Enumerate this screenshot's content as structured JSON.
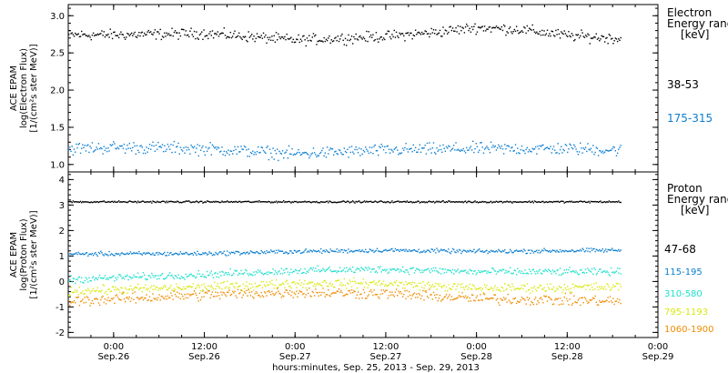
{
  "figure": {
    "xaxis_title": "hours:minutes, Sep. 25, 2013 - Sep. 29, 2013",
    "xticks": [
      {
        "time": "0:00",
        "date": "Sep.26",
        "t": 0
      },
      {
        "time": "12:00",
        "date": "Sep.26",
        "t": 12
      },
      {
        "time": "0:00",
        "date": "Sep.27",
        "t": 24
      },
      {
        "time": "12:00",
        "date": "Sep.27",
        "t": 36
      },
      {
        "time": "0:00",
        "date": "Sep.28",
        "t": 48
      },
      {
        "time": "12:00",
        "date": "Sep.28",
        "t": 60
      },
      {
        "time": "0:00",
        "date": "Sep.29",
        "t": 72
      }
    ]
  },
  "chart_data": [
    {
      "type": "scatter",
      "ylabel_lines": [
        "ACE EPAM",
        "log(Electron Flux)",
        "[1/(cm²s ster MeV)]"
      ],
      "yticks": [
        "1.0",
        "1.5",
        "2.0",
        "2.5",
        "3.0"
      ],
      "ylim": [
        0.9,
        3.15
      ],
      "xlim_hours": [
        -6,
        72
      ],
      "legend_title": [
        "Electron",
        "Energy range",
        "[keV]"
      ],
      "series": [
        {
          "name": "38-53",
          "color": "#000000",
          "t_start": -6,
          "t_end": 67,
          "mean": 2.73,
          "spread": 0.06,
          "trend": [
            [
              -6,
              2.75
            ],
            [
              0,
              2.75
            ],
            [
              12,
              2.77
            ],
            [
              24,
              2.68
            ],
            [
              36,
              2.73
            ],
            [
              42,
              2.78
            ],
            [
              48,
              2.85
            ],
            [
              54,
              2.82
            ],
            [
              60,
              2.74
            ],
            [
              67,
              2.7
            ]
          ]
        },
        {
          "name": "175-315",
          "color": "#0c7fd1",
          "t_start": -6,
          "t_end": 67,
          "mean": 1.2,
          "spread": 0.07,
          "trend": [
            [
              -6,
              1.22
            ],
            [
              0,
              1.24
            ],
            [
              12,
              1.22
            ],
            [
              24,
              1.15
            ],
            [
              36,
              1.2
            ],
            [
              48,
              1.22
            ],
            [
              60,
              1.22
            ],
            [
              67,
              1.2
            ]
          ]
        }
      ]
    },
    {
      "type": "scatter",
      "ylabel_lines": [
        "ACE EPAM",
        "log(Proton Flux)",
        "[1/(cm²s ster MeV)]"
      ],
      "yticks": [
        "-2",
        "-1",
        "0",
        "1",
        "2",
        "3",
        "4"
      ],
      "ylim": [
        -2.2,
        4.3
      ],
      "xlim_hours": [
        -6,
        72
      ],
      "legend_title": [
        "Proton",
        "Energy range",
        "[keV]"
      ],
      "series": [
        {
          "name": "47-68",
          "color": "#000000",
          "t_start": -6,
          "t_end": 67,
          "mean": 3.15,
          "spread": 0.03,
          "trend": [
            [
              -6,
              3.15
            ],
            [
              67,
              3.15
            ]
          ]
        },
        {
          "name": "115-195",
          "color": "#0c7fd1",
          "t_start": -6,
          "t_end": 67,
          "mean": 1.2,
          "spread": 0.07,
          "trend": [
            [
              -6,
              1.1
            ],
            [
              12,
              1.12
            ],
            [
              24,
              1.2
            ],
            [
              36,
              1.25
            ],
            [
              48,
              1.2
            ],
            [
              67,
              1.25
            ]
          ]
        },
        {
          "name": "310-580",
          "color": "#1fe0cc",
          "t_start": -6,
          "t_end": 67,
          "mean": 0.35,
          "spread": 0.12,
          "trend": [
            [
              -6,
              0.1
            ],
            [
              12,
              0.3
            ],
            [
              24,
              0.45
            ],
            [
              36,
              0.5
            ],
            [
              48,
              0.4
            ],
            [
              67,
              0.4
            ]
          ]
        },
        {
          "name": "795-1193",
          "color": "#d9e80f",
          "t_start": -6,
          "t_end": 67,
          "mean": -0.3,
          "spread": 0.15,
          "trend": [
            [
              -6,
              -0.35
            ],
            [
              12,
              -0.2
            ],
            [
              24,
              -0.05
            ],
            [
              36,
              -0.05
            ],
            [
              48,
              -0.25
            ],
            [
              67,
              -0.2
            ]
          ]
        },
        {
          "name": "1060-1900",
          "color": "#ef8c00",
          "t_start": -6,
          "t_end": 67,
          "mean": -0.7,
          "spread": 0.18,
          "trend": [
            [
              -6,
              -0.75
            ],
            [
              12,
              -0.5
            ],
            [
              24,
              -0.4
            ],
            [
              36,
              -0.45
            ],
            [
              48,
              -0.65
            ],
            [
              67,
              -0.75
            ]
          ]
        }
      ]
    }
  ]
}
